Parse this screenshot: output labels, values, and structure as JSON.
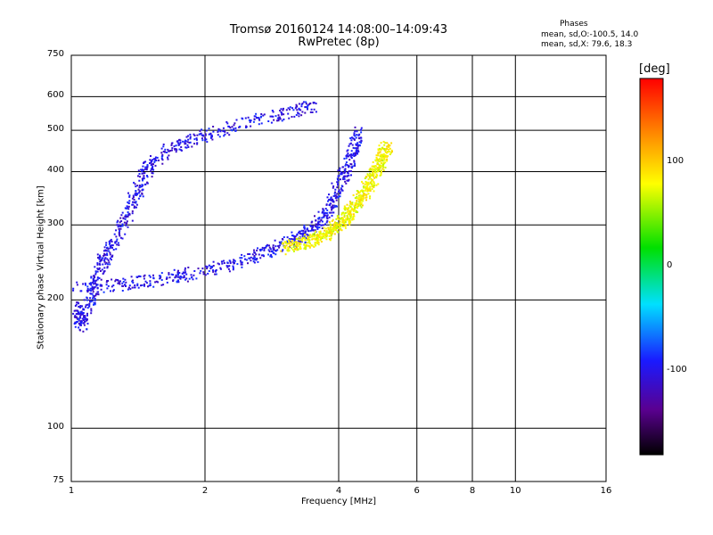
{
  "chart_data": {
    "type": "scatter",
    "title": "Tromsø 20160124 14:08:00–14:09:43",
    "subtitle": "RwPretec (8p)",
    "xlabel": "Frequency [MHz]",
    "ylabel": "Stationary phase Virtual Height [km]",
    "x_scale": "log",
    "y_scale": "log",
    "xlim": [
      1,
      16
    ],
    "ylim": [
      75,
      750
    ],
    "x_ticks": [
      "1",
      "2",
      "4",
      "6",
      "8",
      "10",
      "16"
    ],
    "y_ticks": [
      "75",
      "100",
      "200",
      "300",
      "400",
      "500",
      "600",
      "750"
    ],
    "grid": true,
    "colorbar": {
      "label": "[deg]",
      "range": [
        -180,
        180
      ],
      "ticks": [
        "100",
        "0",
        "-100"
      ]
    },
    "phase_info": {
      "heading": "Phases",
      "o_line": "mean, sd,O:-100.5, 14.0",
      "x_line": "mean, sd,X:  79.6, 18.3"
    },
    "series": [
      {
        "description_color_deg": -100,
        "curve": [
          [
            1.0,
            215
          ],
          [
            1.3,
            218
          ],
          [
            1.6,
            225
          ],
          [
            2.0,
            235
          ],
          [
            2.4,
            248
          ],
          [
            2.8,
            262
          ],
          [
            3.1,
            275
          ],
          [
            3.4,
            290
          ],
          [
            3.7,
            315
          ],
          [
            3.9,
            350
          ],
          [
            4.1,
            400
          ],
          [
            4.3,
            450
          ],
          [
            4.4,
            500
          ]
        ]
      },
      {
        "description_color_deg": 80,
        "curve": [
          [
            3.0,
            265
          ],
          [
            3.4,
            275
          ],
          [
            3.8,
            290
          ],
          [
            4.1,
            310
          ],
          [
            4.4,
            340
          ],
          [
            4.7,
            380
          ],
          [
            4.9,
            420
          ],
          [
            5.1,
            460
          ]
        ]
      },
      {
        "description_color_deg": -100,
        "curve": [
          [
            1.0,
            195
          ],
          [
            1.05,
            175
          ],
          [
            1.1,
            200
          ],
          [
            1.15,
            235
          ],
          [
            1.2,
            260
          ],
          [
            1.3,
            300
          ],
          [
            1.4,
            360
          ],
          [
            1.5,
            420
          ],
          [
            1.7,
            460
          ],
          [
            2.0,
            490
          ],
          [
            2.4,
            520
          ],
          [
            3.0,
            550
          ],
          [
            3.5,
            570
          ]
        ]
      }
    ]
  }
}
